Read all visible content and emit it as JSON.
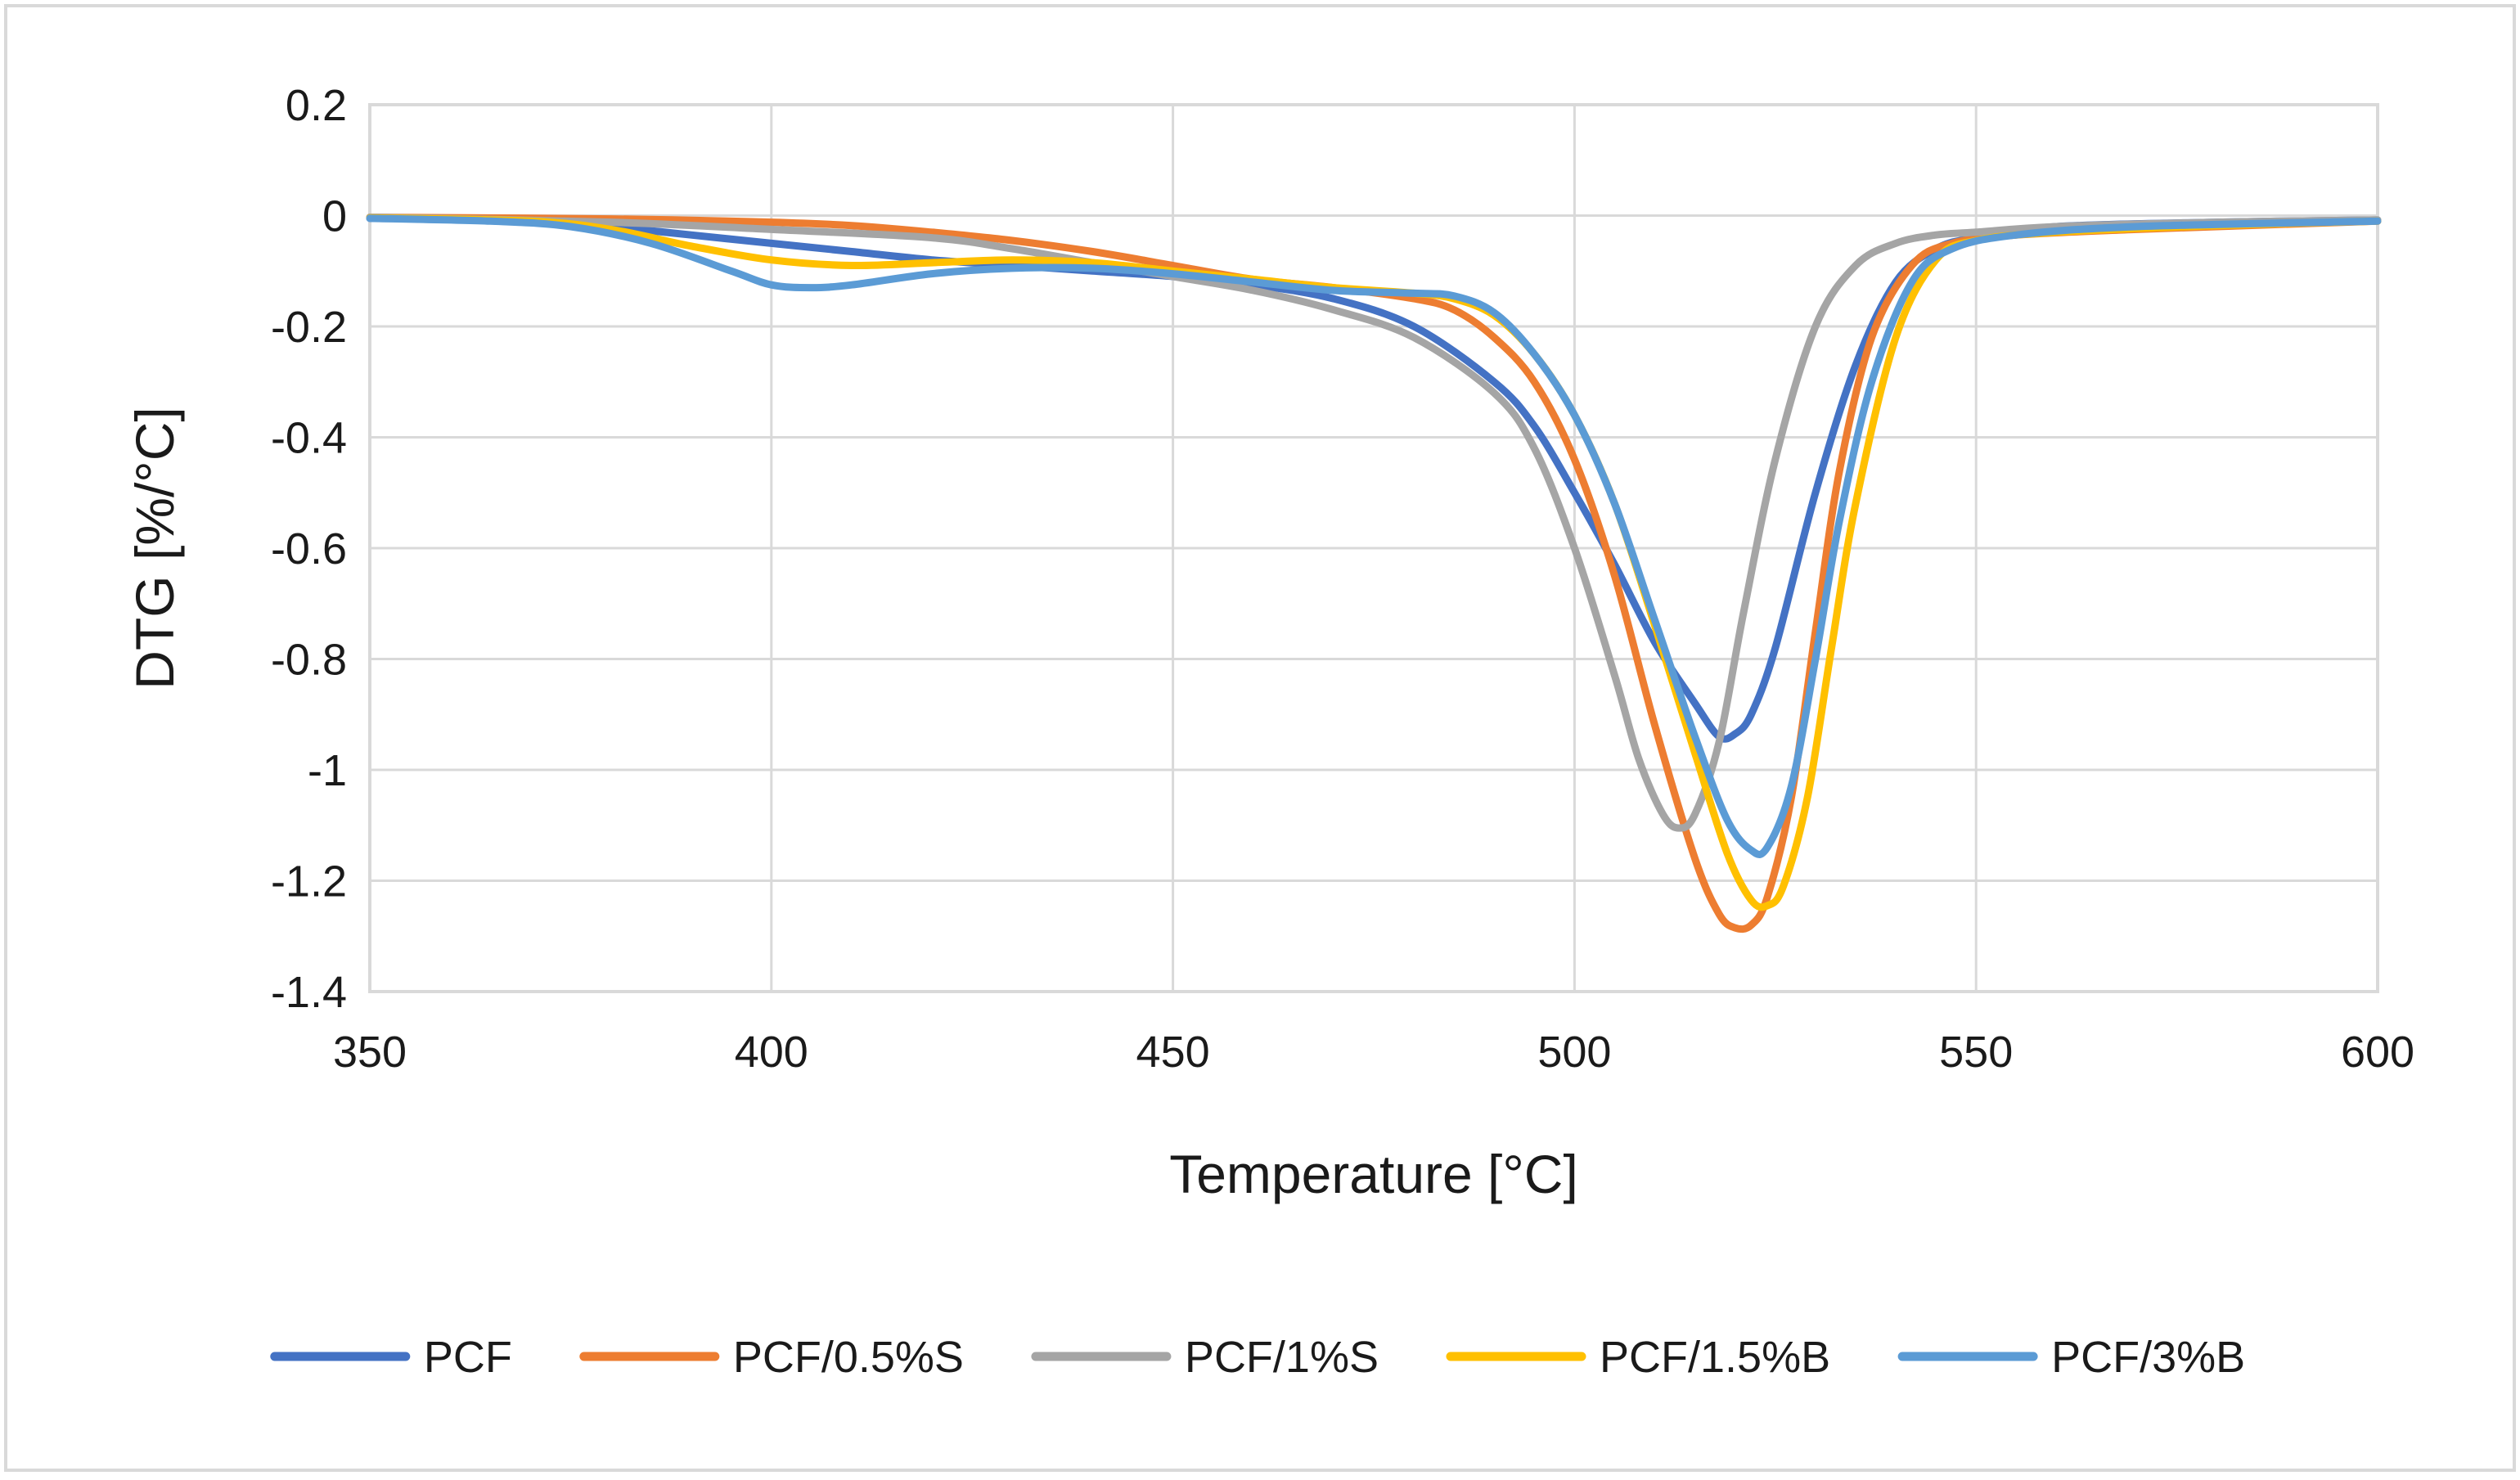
{
  "chart_data": {
    "type": "line",
    "title": "",
    "xlabel": "Temperature [°C]",
    "ylabel": "DTG [%/°C]",
    "xlim": [
      350,
      600
    ],
    "ylim": [
      -1.4,
      0.2
    ],
    "x_ticks": [
      350,
      400,
      450,
      500,
      550,
      600
    ],
    "y_ticks": [
      0.2,
      0,
      -0.2,
      -0.4,
      -0.6,
      -0.8,
      -1,
      -1.2,
      -1.4
    ],
    "x_tick_labels": [
      "350",
      "400",
      "450",
      "500",
      "550",
      "600"
    ],
    "y_tick_labels": [
      "0.2",
      "0",
      "-0.2",
      "-0.4",
      "-0.6",
      "-0.8",
      "-1",
      "-1.2",
      "-1.4"
    ],
    "grid": true,
    "legend_position": "bottom",
    "series": [
      {
        "name": "PCF",
        "color": "#4472C4",
        "points": [
          [
            350,
            -0.005
          ],
          [
            370,
            -0.008
          ],
          [
            380,
            -0.02
          ],
          [
            390,
            -0.035
          ],
          [
            400,
            -0.05
          ],
          [
            410,
            -0.065
          ],
          [
            420,
            -0.08
          ],
          [
            430,
            -0.09
          ],
          [
            440,
            -0.1
          ],
          [
            450,
            -0.11
          ],
          [
            460,
            -0.125
          ],
          [
            470,
            -0.15
          ],
          [
            480,
            -0.2
          ],
          [
            490,
            -0.3
          ],
          [
            495,
            -0.38
          ],
          [
            500,
            -0.5
          ],
          [
            505,
            -0.63
          ],
          [
            510,
            -0.77
          ],
          [
            515,
            -0.88
          ],
          [
            518,
            -0.94
          ],
          [
            520,
            -0.935
          ],
          [
            522,
            -0.9
          ],
          [
            525,
            -0.78
          ],
          [
            530,
            -0.5
          ],
          [
            535,
            -0.27
          ],
          [
            540,
            -0.12
          ],
          [
            545,
            -0.06
          ],
          [
            550,
            -0.04
          ],
          [
            560,
            -0.02
          ],
          [
            580,
            -0.012
          ],
          [
            600,
            -0.008
          ]
        ]
      },
      {
        "name": "PCF/0.5%S",
        "color": "#ED7D31",
        "points": [
          [
            350,
            -0.003
          ],
          [
            380,
            -0.006
          ],
          [
            400,
            -0.012
          ],
          [
            410,
            -0.018
          ],
          [
            420,
            -0.03
          ],
          [
            430,
            -0.045
          ],
          [
            440,
            -0.065
          ],
          [
            450,
            -0.09
          ],
          [
            460,
            -0.115
          ],
          [
            470,
            -0.13
          ],
          [
            480,
            -0.15
          ],
          [
            485,
            -0.17
          ],
          [
            490,
            -0.22
          ],
          [
            495,
            -0.3
          ],
          [
            500,
            -0.44
          ],
          [
            505,
            -0.65
          ],
          [
            510,
            -0.92
          ],
          [
            515,
            -1.16
          ],
          [
            518,
            -1.26
          ],
          [
            520,
            -1.285
          ],
          [
            522,
            -1.28
          ],
          [
            524,
            -1.23
          ],
          [
            527,
            -1.05
          ],
          [
            530,
            -0.75
          ],
          [
            533,
            -0.46
          ],
          [
            537,
            -0.22
          ],
          [
            542,
            -0.09
          ],
          [
            547,
            -0.05
          ],
          [
            555,
            -0.035
          ],
          [
            570,
            -0.025
          ],
          [
            600,
            -0.01
          ]
        ]
      },
      {
        "name": "PCF/1%S",
        "color": "#A5A5A5",
        "points": [
          [
            350,
            -0.003
          ],
          [
            380,
            -0.012
          ],
          [
            400,
            -0.025
          ],
          [
            420,
            -0.04
          ],
          [
            430,
            -0.06
          ],
          [
            440,
            -0.085
          ],
          [
            450,
            -0.11
          ],
          [
            460,
            -0.135
          ],
          [
            470,
            -0.17
          ],
          [
            480,
            -0.22
          ],
          [
            490,
            -0.32
          ],
          [
            495,
            -0.42
          ],
          [
            500,
            -0.6
          ],
          [
            505,
            -0.83
          ],
          [
            508,
            -0.98
          ],
          [
            511,
            -1.08
          ],
          [
            513,
            -1.105
          ],
          [
            515,
            -1.08
          ],
          [
            518,
            -0.95
          ],
          [
            521,
            -0.72
          ],
          [
            525,
            -0.44
          ],
          [
            530,
            -0.2
          ],
          [
            535,
            -0.09
          ],
          [
            540,
            -0.05
          ],
          [
            545,
            -0.035
          ],
          [
            550,
            -0.03
          ],
          [
            560,
            -0.02
          ],
          [
            580,
            -0.012
          ],
          [
            600,
            -0.008
          ]
        ]
      },
      {
        "name": "PCF/1.5%B",
        "color": "#FFC000",
        "points": [
          [
            350,
            -0.004
          ],
          [
            370,
            -0.01
          ],
          [
            380,
            -0.025
          ],
          [
            390,
            -0.055
          ],
          [
            400,
            -0.08
          ],
          [
            410,
            -0.09
          ],
          [
            420,
            -0.085
          ],
          [
            430,
            -0.08
          ],
          [
            440,
            -0.085
          ],
          [
            450,
            -0.1
          ],
          [
            460,
            -0.115
          ],
          [
            470,
            -0.13
          ],
          [
            480,
            -0.14
          ],
          [
            485,
            -0.15
          ],
          [
            490,
            -0.18
          ],
          [
            495,
            -0.25
          ],
          [
            500,
            -0.36
          ],
          [
            505,
            -0.52
          ],
          [
            510,
            -0.74
          ],
          [
            515,
            -0.97
          ],
          [
            519,
            -1.15
          ],
          [
            522,
            -1.235
          ],
          [
            524,
            -1.245
          ],
          [
            526,
            -1.21
          ],
          [
            529,
            -1.05
          ],
          [
            532,
            -0.78
          ],
          [
            535,
            -0.52
          ],
          [
            540,
            -0.22
          ],
          [
            545,
            -0.08
          ],
          [
            550,
            -0.045
          ],
          [
            560,
            -0.03
          ],
          [
            580,
            -0.018
          ],
          [
            600,
            -0.01
          ]
        ]
      },
      {
        "name": "PCF/3%B",
        "color": "#5B9BD5",
        "points": [
          [
            350,
            -0.005
          ],
          [
            365,
            -0.01
          ],
          [
            375,
            -0.02
          ],
          [
            385,
            -0.05
          ],
          [
            395,
            -0.1
          ],
          [
            400,
            -0.125
          ],
          [
            405,
            -0.13
          ],
          [
            410,
            -0.125
          ],
          [
            420,
            -0.105
          ],
          [
            430,
            -0.095
          ],
          [
            440,
            -0.095
          ],
          [
            450,
            -0.105
          ],
          [
            460,
            -0.12
          ],
          [
            470,
            -0.135
          ],
          [
            480,
            -0.14
          ],
          [
            485,
            -0.145
          ],
          [
            490,
            -0.175
          ],
          [
            495,
            -0.25
          ],
          [
            500,
            -0.36
          ],
          [
            505,
            -0.52
          ],
          [
            510,
            -0.73
          ],
          [
            515,
            -0.94
          ],
          [
            519,
            -1.09
          ],
          [
            522,
            -1.145
          ],
          [
            524,
            -1.14
          ],
          [
            527,
            -1.03
          ],
          [
            530,
            -0.8
          ],
          [
            533,
            -0.55
          ],
          [
            537,
            -0.3
          ],
          [
            542,
            -0.12
          ],
          [
            547,
            -0.06
          ],
          [
            555,
            -0.035
          ],
          [
            570,
            -0.02
          ],
          [
            600,
            -0.01
          ]
        ]
      }
    ]
  }
}
